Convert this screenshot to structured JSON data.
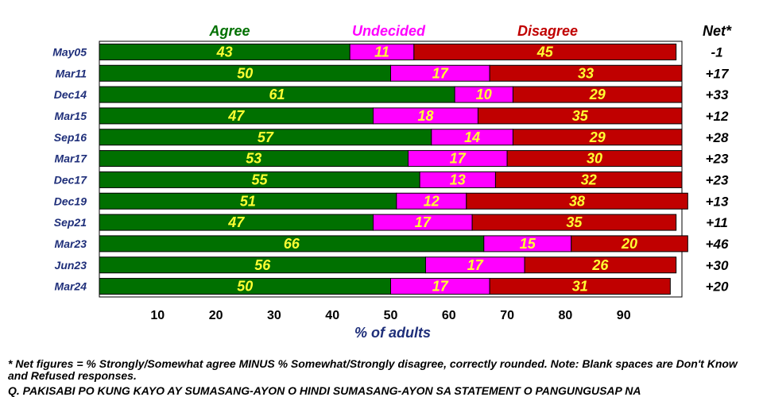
{
  "chart_data": {
    "type": "bar",
    "orientation": "horizontal",
    "stacked": true,
    "categories": [
      "May05",
      "Mar11",
      "Dec14",
      "Mar15",
      "Sep16",
      "Mar17",
      "Dec17",
      "Dec19",
      "Sep21",
      "Mar23",
      "Jun23",
      "Mar24"
    ],
    "series": [
      {
        "name": "Agree",
        "color": "#007000",
        "values": [
          43,
          50,
          61,
          47,
          57,
          53,
          55,
          51,
          47,
          66,
          56,
          50
        ]
      },
      {
        "name": "Undecided",
        "color": "#ff00ff",
        "values": [
          11,
          17,
          10,
          18,
          14,
          17,
          13,
          12,
          17,
          15,
          17,
          17
        ]
      },
      {
        "name": "Disagree",
        "color": "#c00000",
        "values": [
          45,
          33,
          29,
          35,
          29,
          30,
          32,
          38,
          35,
          20,
          26,
          31
        ]
      }
    ],
    "legend_colors": {
      "Agree": "#007000",
      "Undecided": "#ff00ff",
      "Disagree": "#c00000"
    },
    "net_header": "Net*",
    "net": [
      "-1",
      "+17",
      "+33",
      "+12",
      "+28",
      "+23",
      "+23",
      "+13",
      "+11",
      "+46",
      "+30",
      "+20"
    ],
    "xticks": [
      "10",
      "20",
      "30",
      "40",
      "50",
      "60",
      "70",
      "80",
      "90"
    ],
    "xlabel": "% of adults",
    "xlim": [
      0,
      100
    ],
    "legend_placement": "top",
    "grid": false,
    "value_label_color": "#ffff33"
  },
  "footnotes": {
    "net_note": "* Net figures = % Strongly/Somewhat agree MINUS % Somewhat/Strongly disagree, correctly rounded. Note: Blank spaces are Don't Know and Refused responses.",
    "question": "Q. PAKISABI PO KUNG KAYO AY SUMASANG-AYON O HINDI SUMASANG-AYON SA STATEMENT O PANGUNGUSAP NA"
  }
}
